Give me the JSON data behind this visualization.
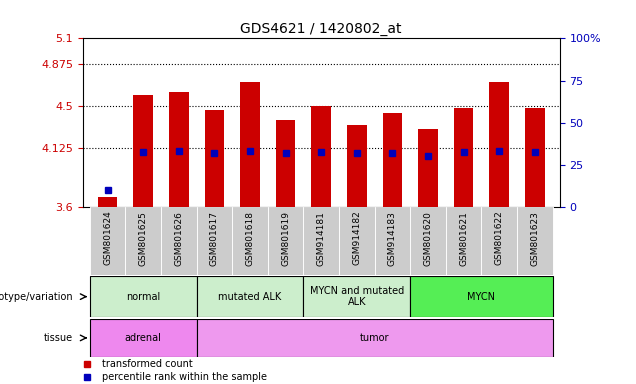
{
  "title": "GDS4621 / 1420802_at",
  "samples": [
    "GSM801624",
    "GSM801625",
    "GSM801626",
    "GSM801617",
    "GSM801618",
    "GSM801619",
    "GSM914181",
    "GSM914182",
    "GSM914183",
    "GSM801620",
    "GSM801621",
    "GSM801622",
    "GSM801623"
  ],
  "transformed_count": [
    3.69,
    4.6,
    4.62,
    4.46,
    4.71,
    4.38,
    4.5,
    4.33,
    4.44,
    4.3,
    4.48,
    4.71,
    4.48
  ],
  "percentile_rank_val": [
    3.75,
    4.09,
    4.1,
    4.08,
    4.1,
    4.08,
    4.09,
    4.08,
    4.08,
    4.06,
    4.09,
    4.1,
    4.09
  ],
  "y_min": 3.6,
  "y_max": 5.1,
  "y_ticks": [
    3.6,
    4.125,
    4.5,
    4.875,
    5.1
  ],
  "y_tick_labels": [
    "3.6",
    "4.125",
    "4.5",
    "4.875",
    "5.1"
  ],
  "right_y_ticks_pct": [
    0,
    25,
    50,
    75,
    100
  ],
  "right_y_labels": [
    "0",
    "25",
    "50",
    "75",
    "100%"
  ],
  "dotted_lines": [
    4.125,
    4.5,
    4.875
  ],
  "bar_color": "#cc0000",
  "blue_color": "#0000bb",
  "groups": [
    {
      "label": "normal",
      "start": 0,
      "end": 3,
      "color": "#cceecc"
    },
    {
      "label": "mutated ALK",
      "start": 3,
      "end": 6,
      "color": "#cceecc"
    },
    {
      "label": "MYCN and mutated\nALK",
      "start": 6,
      "end": 9,
      "color": "#cceecc"
    },
    {
      "label": "MYCN",
      "start": 9,
      "end": 13,
      "color": "#55ee55"
    }
  ],
  "tissue_groups": [
    {
      "label": "adrenal",
      "start": 0,
      "end": 3,
      "color": "#ee88ee"
    },
    {
      "label": "tumor",
      "start": 3,
      "end": 13,
      "color": "#ee99ee"
    }
  ],
  "legend_items": [
    {
      "label": "transformed count",
      "color": "#cc0000"
    },
    {
      "label": "percentile rank within the sample",
      "color": "#0000bb"
    }
  ],
  "xlabel_genotype": "genotype/variation",
  "xlabel_tissue": "tissue",
  "tick_color_left": "#cc0000",
  "tick_color_right": "#0000bb",
  "bar_bottom": 3.6,
  "bar_width": 0.55,
  "xticklabel_bg": "#cccccc",
  "xticklabel_fontsize": 6.5
}
